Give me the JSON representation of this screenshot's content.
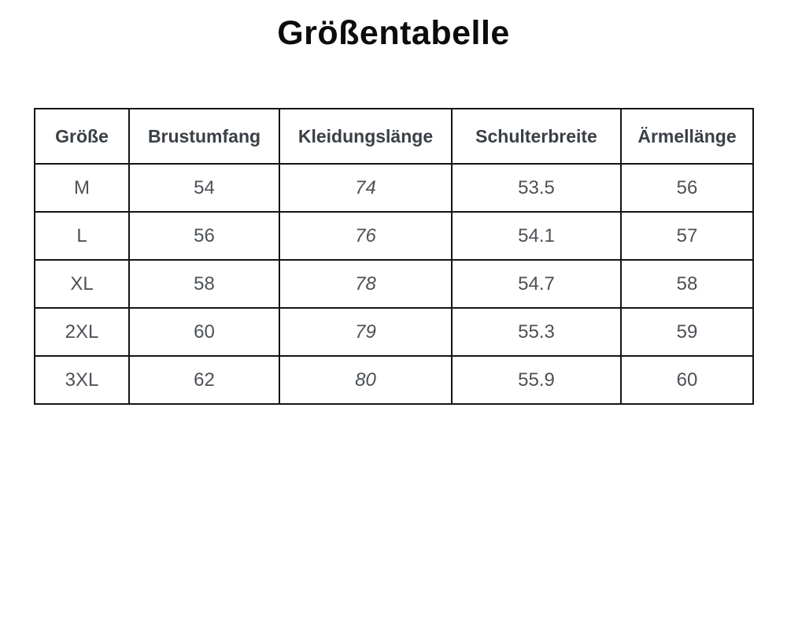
{
  "chart_data": {
    "type": "table",
    "title": "Größentabelle",
    "columns": [
      "Größe",
      "Brustumfang",
      "Kleidungslänge",
      "Schulterbreite",
      "Ärmellänge"
    ],
    "rows": [
      [
        "M",
        "54",
        "74",
        "53.5",
        "56"
      ],
      [
        "L",
        "56",
        "76",
        "54.1",
        "57"
      ],
      [
        "XL",
        "58",
        "78",
        "54.7",
        "58"
      ],
      [
        "2XL",
        "60",
        "79",
        "55.3",
        "59"
      ],
      [
        "3XL",
        "62",
        "80",
        "55.9",
        "60"
      ]
    ],
    "layout_hints": {
      "italic_column": "Kleidungslänge",
      "header_row_bold": true
    }
  },
  "colors": {
    "background": "#ffffff",
    "table_border": "#141414",
    "title_text": "#0c0c0c",
    "header_text": "#3b4046",
    "body_text": "#4c5157"
  }
}
